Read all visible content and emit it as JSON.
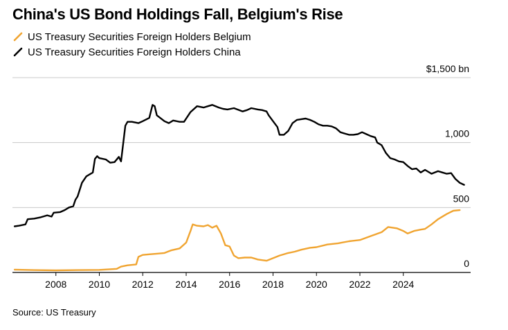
{
  "title": "China's US Bond Holdings Fall, Belgium's Rise",
  "source": "Source: US Treasury",
  "colors": {
    "belgium": "#f0a430",
    "china": "#000000",
    "grid": "#c8c8c8",
    "axis": "#000000"
  },
  "chart_data": {
    "type": "line",
    "title": "China's US Bond Holdings Fall, Belgium's Rise",
    "xlabel": "",
    "ylabel": "",
    "unit": "bn",
    "xlim": [
      2006.0,
      2027.1
    ],
    "ylim": [
      0,
      1500
    ],
    "x_ticks": [
      2008,
      2010,
      2012,
      2014,
      2016,
      2018,
      2020,
      2022,
      2024
    ],
    "x_tick_labels": [
      "2008",
      "2010",
      "2012",
      "2014",
      "2016",
      "2018",
      "2020",
      "2022",
      "2024"
    ],
    "y_ticks": [
      0,
      500,
      1000,
      1500
    ],
    "y_tick_labels": [
      "0",
      "500",
      "1,000",
      "$1,500 bn"
    ],
    "grid": true,
    "legend_position": "top-left",
    "series": [
      {
        "name": "US Treasury Securities Foreign Holders Belgium",
        "color": "#f0a430",
        "points": [
          [
            2006.1,
            22
          ],
          [
            2007.0,
            18
          ],
          [
            2008.0,
            16
          ],
          [
            2009.0,
            18
          ],
          [
            2010.0,
            20
          ],
          [
            2010.8,
            28
          ],
          [
            2011.0,
            45
          ],
          [
            2011.3,
            55
          ],
          [
            2011.7,
            62
          ],
          [
            2011.8,
            120
          ],
          [
            2012.0,
            135
          ],
          [
            2012.3,
            140
          ],
          [
            2012.7,
            145
          ],
          [
            2013.0,
            150
          ],
          [
            2013.3,
            170
          ],
          [
            2013.7,
            185
          ],
          [
            2014.0,
            230
          ],
          [
            2014.2,
            320
          ],
          [
            2014.3,
            370
          ],
          [
            2014.5,
            360
          ],
          [
            2014.8,
            355
          ],
          [
            2015.0,
            365
          ],
          [
            2015.2,
            345
          ],
          [
            2015.4,
            360
          ],
          [
            2015.6,
            300
          ],
          [
            2015.8,
            210
          ],
          [
            2016.0,
            200
          ],
          [
            2016.2,
            130
          ],
          [
            2016.4,
            110
          ],
          [
            2016.7,
            115
          ],
          [
            2017.0,
            115
          ],
          [
            2017.3,
            100
          ],
          [
            2017.7,
            90
          ],
          [
            2018.0,
            110
          ],
          [
            2018.3,
            130
          ],
          [
            2018.7,
            150
          ],
          [
            2019.0,
            160
          ],
          [
            2019.3,
            175
          ],
          [
            2019.7,
            190
          ],
          [
            2020.0,
            195
          ],
          [
            2020.5,
            215
          ],
          [
            2021.0,
            225
          ],
          [
            2021.5,
            240
          ],
          [
            2022.0,
            250
          ],
          [
            2022.5,
            280
          ],
          [
            2023.0,
            310
          ],
          [
            2023.3,
            350
          ],
          [
            2023.7,
            340
          ],
          [
            2024.0,
            320
          ],
          [
            2024.2,
            300
          ],
          [
            2024.5,
            320
          ],
          [
            2024.8,
            330
          ],
          [
            2025.0,
            335
          ],
          [
            2025.3,
            370
          ],
          [
            2025.6,
            410
          ],
          [
            2026.0,
            450
          ],
          [
            2026.3,
            475
          ],
          [
            2026.6,
            480
          ]
        ]
      },
      {
        "name": "US Treasury Securities Foreign Holders China",
        "color": "#000000",
        "points": [
          [
            2006.1,
            355
          ],
          [
            2006.3,
            360
          ],
          [
            2006.6,
            370
          ],
          [
            2006.7,
            410
          ],
          [
            2007.0,
            415
          ],
          [
            2007.3,
            425
          ],
          [
            2007.6,
            440
          ],
          [
            2007.8,
            430
          ],
          [
            2007.9,
            460
          ],
          [
            2008.2,
            465
          ],
          [
            2008.4,
            480
          ],
          [
            2008.6,
            500
          ],
          [
            2008.8,
            510
          ],
          [
            2008.9,
            560
          ],
          [
            2009.0,
            585
          ],
          [
            2009.2,
            690
          ],
          [
            2009.4,
            740
          ],
          [
            2009.7,
            770
          ],
          [
            2009.8,
            875
          ],
          [
            2009.9,
            895
          ],
          [
            2010.0,
            880
          ],
          [
            2010.3,
            870
          ],
          [
            2010.5,
            845
          ],
          [
            2010.7,
            850
          ],
          [
            2010.9,
            890
          ],
          [
            2011.0,
            855
          ],
          [
            2011.2,
            1130
          ],
          [
            2011.3,
            1160
          ],
          [
            2011.5,
            1160
          ],
          [
            2011.8,
            1150
          ],
          [
            2012.0,
            1165
          ],
          [
            2012.3,
            1190
          ],
          [
            2012.45,
            1290
          ],
          [
            2012.55,
            1280
          ],
          [
            2012.65,
            1210
          ],
          [
            2013.0,
            1165
          ],
          [
            2013.2,
            1150
          ],
          [
            2013.4,
            1170
          ],
          [
            2013.7,
            1160
          ],
          [
            2013.9,
            1160
          ],
          [
            2014.2,
            1235
          ],
          [
            2014.5,
            1280
          ],
          [
            2014.8,
            1270
          ],
          [
            2015.0,
            1280
          ],
          [
            2015.2,
            1290
          ],
          [
            2015.5,
            1270
          ],
          [
            2015.7,
            1260
          ],
          [
            2015.9,
            1255
          ],
          [
            2016.2,
            1265
          ],
          [
            2016.6,
            1240
          ],
          [
            2016.8,
            1250
          ],
          [
            2017.0,
            1265
          ],
          [
            2017.3,
            1255
          ],
          [
            2017.5,
            1250
          ],
          [
            2017.7,
            1240
          ],
          [
            2017.8,
            1210
          ],
          [
            2018.0,
            1165
          ],
          [
            2018.2,
            1120
          ],
          [
            2018.3,
            1060
          ],
          [
            2018.5,
            1060
          ],
          [
            2018.7,
            1090
          ],
          [
            2018.9,
            1150
          ],
          [
            2019.1,
            1175
          ],
          [
            2019.3,
            1180
          ],
          [
            2019.5,
            1185
          ],
          [
            2019.7,
            1175
          ],
          [
            2019.9,
            1160
          ],
          [
            2020.1,
            1140
          ],
          [
            2020.3,
            1130
          ],
          [
            2020.5,
            1130
          ],
          [
            2020.7,
            1125
          ],
          [
            2020.9,
            1110
          ],
          [
            2021.1,
            1080
          ],
          [
            2021.3,
            1070
          ],
          [
            2021.5,
            1060
          ],
          [
            2021.7,
            1060
          ],
          [
            2021.9,
            1065
          ],
          [
            2022.1,
            1080
          ],
          [
            2022.3,
            1065
          ],
          [
            2022.5,
            1050
          ],
          [
            2022.7,
            1040
          ],
          [
            2022.8,
            1000
          ],
          [
            2023.0,
            980
          ],
          [
            2023.2,
            920
          ],
          [
            2023.4,
            880
          ],
          [
            2023.6,
            870
          ],
          [
            2023.8,
            855
          ],
          [
            2024.0,
            850
          ],
          [
            2024.2,
            820
          ],
          [
            2024.4,
            795
          ],
          [
            2024.6,
            800
          ],
          [
            2024.8,
            770
          ],
          [
            2025.0,
            790
          ],
          [
            2025.3,
            760
          ],
          [
            2025.6,
            780
          ],
          [
            2025.8,
            770
          ],
          [
            2026.0,
            760
          ],
          [
            2026.2,
            765
          ],
          [
            2026.4,
            720
          ],
          [
            2026.6,
            690
          ],
          [
            2026.8,
            675
          ]
        ]
      }
    ]
  }
}
